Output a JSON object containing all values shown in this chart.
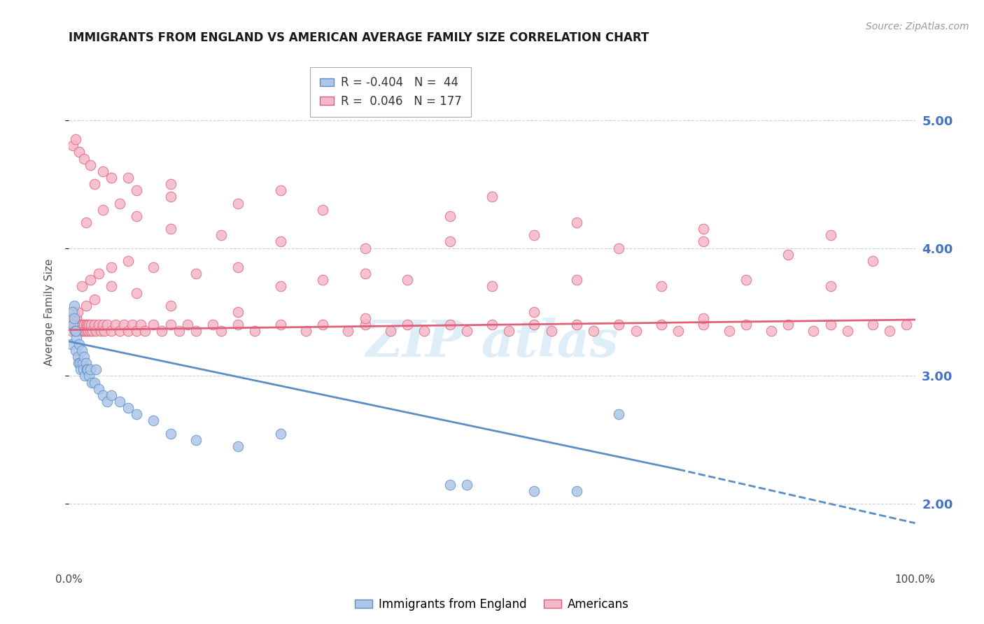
{
  "title": "IMMIGRANTS FROM ENGLAND VS AMERICAN AVERAGE FAMILY SIZE CORRELATION CHART",
  "source": "Source: ZipAtlas.com",
  "ylabel": "Average Family Size",
  "right_yticks": [
    2.0,
    3.0,
    4.0,
    5.0
  ],
  "blue_R": "-0.404",
  "blue_N": "44",
  "pink_R": "0.046",
  "pink_N": "177",
  "legend_label_blue": "Immigrants from England",
  "legend_label_pink": "Americans",
  "blue_color": "#aec6e8",
  "blue_edge_color": "#5b8ec4",
  "pink_color": "#f5b8c8",
  "pink_edge_color": "#e0607a",
  "blue_scatter_x": [
    0.3,
    0.5,
    0.6,
    0.7,
    0.8,
    0.9,
    1.0,
    1.1,
    1.2,
    1.3,
    1.4,
    1.5,
    1.6,
    1.7,
    1.8,
    1.9,
    2.0,
    2.1,
    2.2,
    2.4,
    2.5,
    2.7,
    3.0,
    3.2,
    3.5,
    4.0,
    4.5,
    5.0,
    6.0,
    7.0,
    8.0,
    10.0,
    12.0,
    15.0,
    20.0,
    25.0,
    45.0,
    47.0,
    55.0,
    60.0,
    65.0,
    0.4,
    0.6,
    0.8
  ],
  "blue_scatter_y": [
    3.25,
    3.4,
    3.55,
    3.35,
    3.2,
    3.3,
    3.15,
    3.1,
    3.25,
    3.1,
    3.05,
    3.2,
    3.1,
    3.05,
    3.15,
    3.0,
    3.1,
    3.05,
    3.05,
    3.0,
    3.05,
    2.95,
    2.95,
    3.05,
    2.9,
    2.85,
    2.8,
    2.85,
    2.8,
    2.75,
    2.7,
    2.65,
    2.55,
    2.5,
    2.45,
    2.55,
    2.15,
    2.15,
    2.1,
    2.1,
    2.7,
    3.5,
    3.45,
    3.35
  ],
  "pink_scatter_x": [
    0.3,
    0.4,
    0.5,
    0.6,
    0.7,
    0.8,
    0.9,
    1.0,
    1.1,
    1.2,
    1.3,
    1.4,
    1.5,
    1.6,
    1.7,
    1.8,
    1.9,
    2.0,
    2.1,
    2.2,
    2.3,
    2.4,
    2.5,
    2.6,
    2.8,
    3.0,
    3.2,
    3.5,
    3.8,
    4.0,
    4.2,
    4.5,
    5.0,
    5.5,
    6.0,
    6.5,
    7.0,
    7.5,
    8.0,
    8.5,
    9.0,
    10.0,
    11.0,
    12.0,
    13.0,
    14.0,
    15.0,
    17.0,
    18.0,
    20.0,
    22.0,
    25.0,
    28.0,
    30.0,
    33.0,
    35.0,
    38.0,
    40.0,
    42.0,
    45.0,
    47.0,
    50.0,
    52.0,
    55.0,
    57.0,
    60.0,
    62.0,
    65.0,
    67.0,
    70.0,
    72.0,
    75.0,
    78.0,
    80.0,
    83.0,
    85.0,
    88.0,
    90.0,
    92.0,
    95.0,
    97.0,
    99.0,
    1.5,
    2.5,
    3.5,
    5.0,
    7.0,
    10.0,
    15.0,
    20.0,
    25.0,
    30.0,
    35.0,
    40.0,
    50.0,
    60.0,
    70.0,
    80.0,
    90.0,
    2.0,
    4.0,
    6.0,
    8.0,
    12.0,
    18.0,
    25.0,
    35.0,
    45.0,
    55.0,
    65.0,
    75.0,
    85.0,
    95.0,
    3.0,
    5.0,
    8.0,
    12.0,
    20.0,
    30.0,
    45.0,
    60.0,
    75.0,
    90.0,
    1.0,
    2.0,
    3.0,
    5.0,
    8.0,
    12.0,
    20.0,
    35.0,
    55.0,
    75.0,
    0.5,
    0.8,
    1.2,
    1.8,
    2.5,
    4.0,
    7.0,
    12.0,
    25.0,
    50.0
  ],
  "pink_scatter_y": [
    3.35,
    3.45,
    3.4,
    3.5,
    3.4,
    3.35,
    3.45,
    3.4,
    3.35,
    3.4,
    3.35,
    3.4,
    3.35,
    3.4,
    3.35,
    3.4,
    3.35,
    3.4,
    3.35,
    3.4,
    3.35,
    3.4,
    3.35,
    3.4,
    3.35,
    3.4,
    3.35,
    3.4,
    3.35,
    3.4,
    3.35,
    3.4,
    3.35,
    3.4,
    3.35,
    3.4,
    3.35,
    3.4,
    3.35,
    3.4,
    3.35,
    3.4,
    3.35,
    3.4,
    3.35,
    3.4,
    3.35,
    3.4,
    3.35,
    3.4,
    3.35,
    3.4,
    3.35,
    3.4,
    3.35,
    3.4,
    3.35,
    3.4,
    3.35,
    3.4,
    3.35,
    3.4,
    3.35,
    3.4,
    3.35,
    3.4,
    3.35,
    3.4,
    3.35,
    3.4,
    3.35,
    3.4,
    3.35,
    3.4,
    3.35,
    3.4,
    3.35,
    3.4,
    3.35,
    3.4,
    3.35,
    3.4,
    3.7,
    3.75,
    3.8,
    3.85,
    3.9,
    3.85,
    3.8,
    3.85,
    3.7,
    3.75,
    3.8,
    3.75,
    3.7,
    3.75,
    3.7,
    3.75,
    3.7,
    4.2,
    4.3,
    4.35,
    4.25,
    4.15,
    4.1,
    4.05,
    4.0,
    4.05,
    4.1,
    4.0,
    4.05,
    3.95,
    3.9,
    4.5,
    4.55,
    4.45,
    4.4,
    4.35,
    4.3,
    4.25,
    4.2,
    4.15,
    4.1,
    3.5,
    3.55,
    3.6,
    3.7,
    3.65,
    3.55,
    3.5,
    3.45,
    3.5,
    3.45,
    4.8,
    4.85,
    4.75,
    4.7,
    4.65,
    4.6,
    4.55,
    4.5,
    4.45,
    4.4
  ],
  "blue_line_x0": 0,
  "blue_line_y0": 3.27,
  "blue_solid_x1": 72,
  "blue_solid_y1": 2.27,
  "blue_dash_x1": 100,
  "blue_dash_y1": 1.85,
  "pink_line_x0": 0,
  "pink_line_y0": 3.36,
  "pink_line_x1": 100,
  "pink_line_y1": 3.44,
  "xlim": [
    0,
    100
  ],
  "ylim": [
    1.5,
    5.5
  ],
  "background_color": "#ffffff",
  "grid_color": "#d0d0d0",
  "title_fontsize": 12,
  "axis_label_fontsize": 11,
  "tick_fontsize": 11,
  "legend_fontsize": 12,
  "source_fontsize": 10
}
